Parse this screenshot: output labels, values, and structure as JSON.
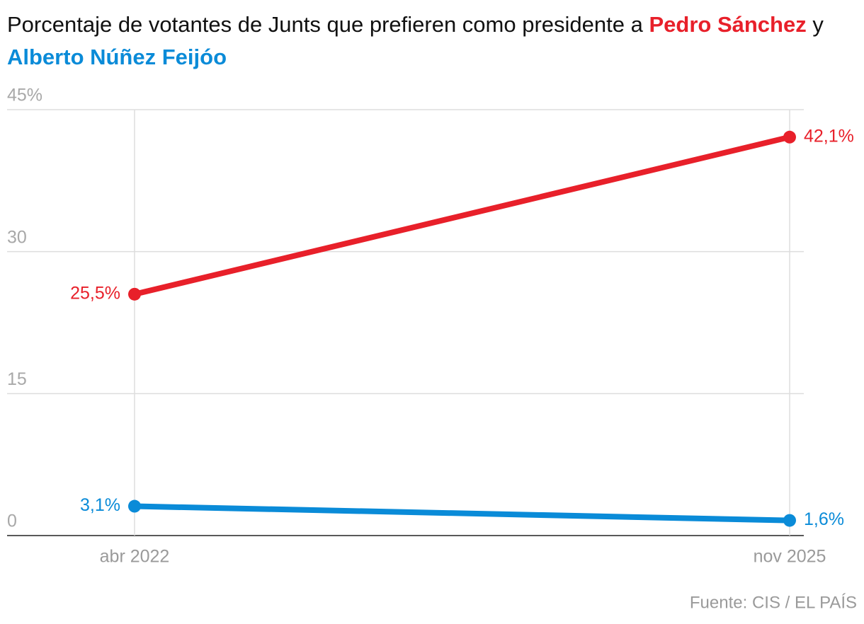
{
  "chart_data": {
    "type": "line",
    "title": {
      "prefix": "Porcentaje de votantes de Junts que prefieren como presidente a",
      "joiner": "y"
    },
    "categories": [
      "abr 2022",
      "nov 2025"
    ],
    "series": [
      {
        "name": "Pedro Sánchez",
        "color": "#e8202a",
        "values": [
          25.5,
          42.1
        ],
        "value_labels": [
          "25,5%",
          "42,1%"
        ]
      },
      {
        "name": "Alberto Núñez Feijóo",
        "color": "#0a8bd8",
        "values": [
          3.1,
          1.6
        ],
        "value_labels": [
          "3,1%",
          "1,6%"
        ]
      }
    ],
    "ylim": [
      0,
      45
    ],
    "yticks": [
      0,
      15,
      30,
      {
        "value": 45,
        "label": "45%"
      }
    ],
    "grid": true,
    "source": "Fuente: CIS / EL PAÍS"
  }
}
